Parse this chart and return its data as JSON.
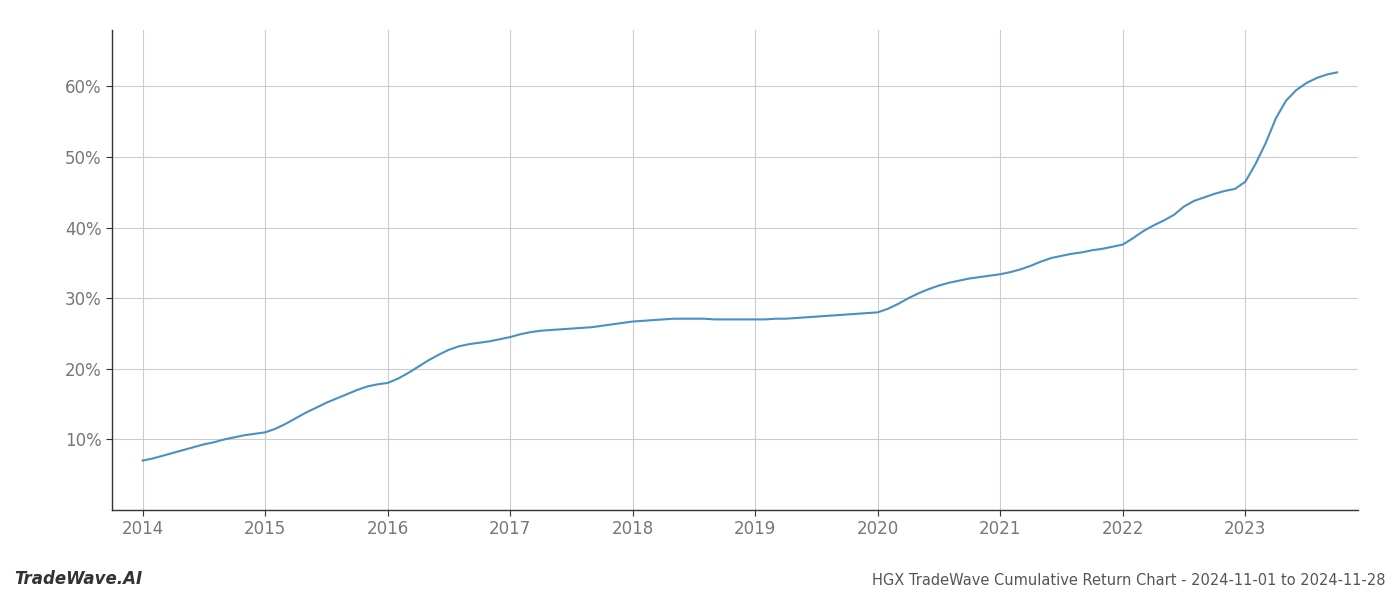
{
  "x_values": [
    2014.0,
    2014.083,
    2014.167,
    2014.25,
    2014.333,
    2014.417,
    2014.5,
    2014.583,
    2014.667,
    2014.75,
    2014.833,
    2014.917,
    2015.0,
    2015.083,
    2015.167,
    2015.25,
    2015.333,
    2015.417,
    2015.5,
    2015.583,
    2015.667,
    2015.75,
    2015.833,
    2015.917,
    2016.0,
    2016.083,
    2016.167,
    2016.25,
    2016.333,
    2016.417,
    2016.5,
    2016.583,
    2016.667,
    2016.75,
    2016.833,
    2016.917,
    2017.0,
    2017.083,
    2017.167,
    2017.25,
    2017.333,
    2017.417,
    2017.5,
    2017.583,
    2017.667,
    2017.75,
    2017.833,
    2017.917,
    2018.0,
    2018.083,
    2018.167,
    2018.25,
    2018.333,
    2018.417,
    2018.5,
    2018.583,
    2018.667,
    2018.75,
    2018.833,
    2018.917,
    2019.0,
    2019.083,
    2019.167,
    2019.25,
    2019.333,
    2019.417,
    2019.5,
    2019.583,
    2019.667,
    2019.75,
    2019.833,
    2019.917,
    2020.0,
    2020.083,
    2020.167,
    2020.25,
    2020.333,
    2020.417,
    2020.5,
    2020.583,
    2020.667,
    2020.75,
    2020.833,
    2020.917,
    2021.0,
    2021.083,
    2021.167,
    2021.25,
    2021.333,
    2021.417,
    2021.5,
    2021.583,
    2021.667,
    2021.75,
    2021.833,
    2021.917,
    2022.0,
    2022.083,
    2022.167,
    2022.25,
    2022.333,
    2022.417,
    2022.5,
    2022.583,
    2022.667,
    2022.75,
    2022.833,
    2022.917,
    2023.0,
    2023.083,
    2023.167,
    2023.25,
    2023.333,
    2023.417,
    2023.5,
    2023.583,
    2023.667,
    2023.75
  ],
  "y_values": [
    7.0,
    7.3,
    7.7,
    8.1,
    8.5,
    8.9,
    9.3,
    9.6,
    10.0,
    10.3,
    10.6,
    10.8,
    11.0,
    11.5,
    12.2,
    13.0,
    13.8,
    14.5,
    15.2,
    15.8,
    16.4,
    17.0,
    17.5,
    17.8,
    18.0,
    18.6,
    19.4,
    20.3,
    21.2,
    22.0,
    22.7,
    23.2,
    23.5,
    23.7,
    23.9,
    24.2,
    24.5,
    24.9,
    25.2,
    25.4,
    25.5,
    25.6,
    25.7,
    25.8,
    25.9,
    26.1,
    26.3,
    26.5,
    26.7,
    26.8,
    26.9,
    27.0,
    27.1,
    27.1,
    27.1,
    27.1,
    27.0,
    27.0,
    27.0,
    27.0,
    27.0,
    27.0,
    27.1,
    27.1,
    27.2,
    27.3,
    27.4,
    27.5,
    27.6,
    27.7,
    27.8,
    27.9,
    28.0,
    28.5,
    29.2,
    30.0,
    30.7,
    31.3,
    31.8,
    32.2,
    32.5,
    32.8,
    33.0,
    33.2,
    33.4,
    33.7,
    34.1,
    34.6,
    35.2,
    35.7,
    36.0,
    36.3,
    36.5,
    36.8,
    37.0,
    37.3,
    37.6,
    38.5,
    39.5,
    40.3,
    41.0,
    41.8,
    43.0,
    43.8,
    44.3,
    44.8,
    45.2,
    45.5,
    46.5,
    49.0,
    52.0,
    55.5,
    58.0,
    59.5,
    60.5,
    61.2,
    61.7,
    62.0
  ],
  "line_color": "#4a90c4",
  "line_width": 1.5,
  "title": "HGX TradeWave Cumulative Return Chart - 2024-11-01 to 2024-11-28",
  "xlim": [
    2013.75,
    2023.92
  ],
  "ylim": [
    0,
    68
  ],
  "yticks": [
    10,
    20,
    30,
    40,
    50,
    60
  ],
  "ytick_labels": [
    "10%",
    "20%",
    "30%",
    "40%",
    "50%",
    "60%"
  ],
  "xticks": [
    2014,
    2015,
    2016,
    2017,
    2018,
    2019,
    2020,
    2021,
    2022,
    2023
  ],
  "grid_color": "#cccccc",
  "background_color": "#ffffff",
  "watermark_text": "TradeWave.AI",
  "title_fontsize": 10.5,
  "tick_fontsize": 12,
  "watermark_fontsize": 12,
  "spine_color": "#333333"
}
